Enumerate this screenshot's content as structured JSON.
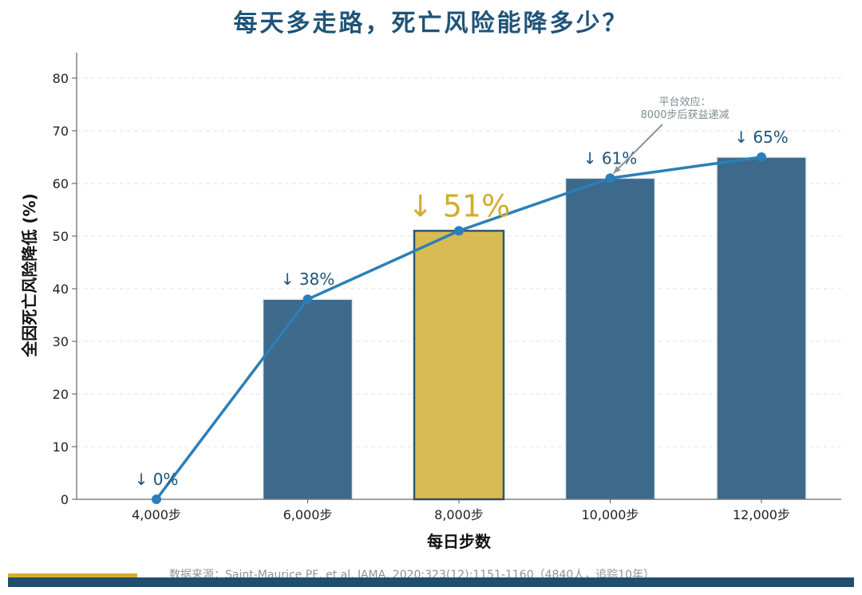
{
  "title": "每天多走路，死亡风险能降多少？",
  "source_note": "数据来源：Saint-Maurice PF, et al. JAMA. 2020;323(12):1151-1160（4840人，追踪10年）",
  "colors": {
    "bar": "#3d6a8a",
    "bar_highlight": "#d9bb53",
    "line": "#2b7fb8",
    "label": "#1f5478",
    "label_highlight": "#d4ac2c",
    "annotation": "#7f8a8f",
    "footer_bar": "#1f4e70",
    "footer_accent": "#d4ac2c"
  },
  "chart_data": {
    "type": "bar",
    "title": "每天多走路，死亡风险能降多少？",
    "xlabel": "每日步数",
    "ylabel": "全因死亡风险降低 (%)",
    "categories": [
      "4,000步",
      "6,000步",
      "8,000步",
      "10,000步",
      "12,000步"
    ],
    "values": [
      0,
      38,
      51,
      61,
      65
    ],
    "labels": [
      "↓ 0%",
      "↓ 38%",
      "↓ 51%",
      "↓ 61%",
      "↓ 65%"
    ],
    "highlight_index": 2,
    "overlay_line": true,
    "ylim": [
      0,
      85
    ],
    "yticks": [
      0,
      10,
      20,
      30,
      40,
      50,
      60,
      70,
      80
    ],
    "grid": true,
    "annotation": {
      "lines": [
        "平台效应：",
        "8000步后获益递减"
      ],
      "target_index": 3
    }
  }
}
